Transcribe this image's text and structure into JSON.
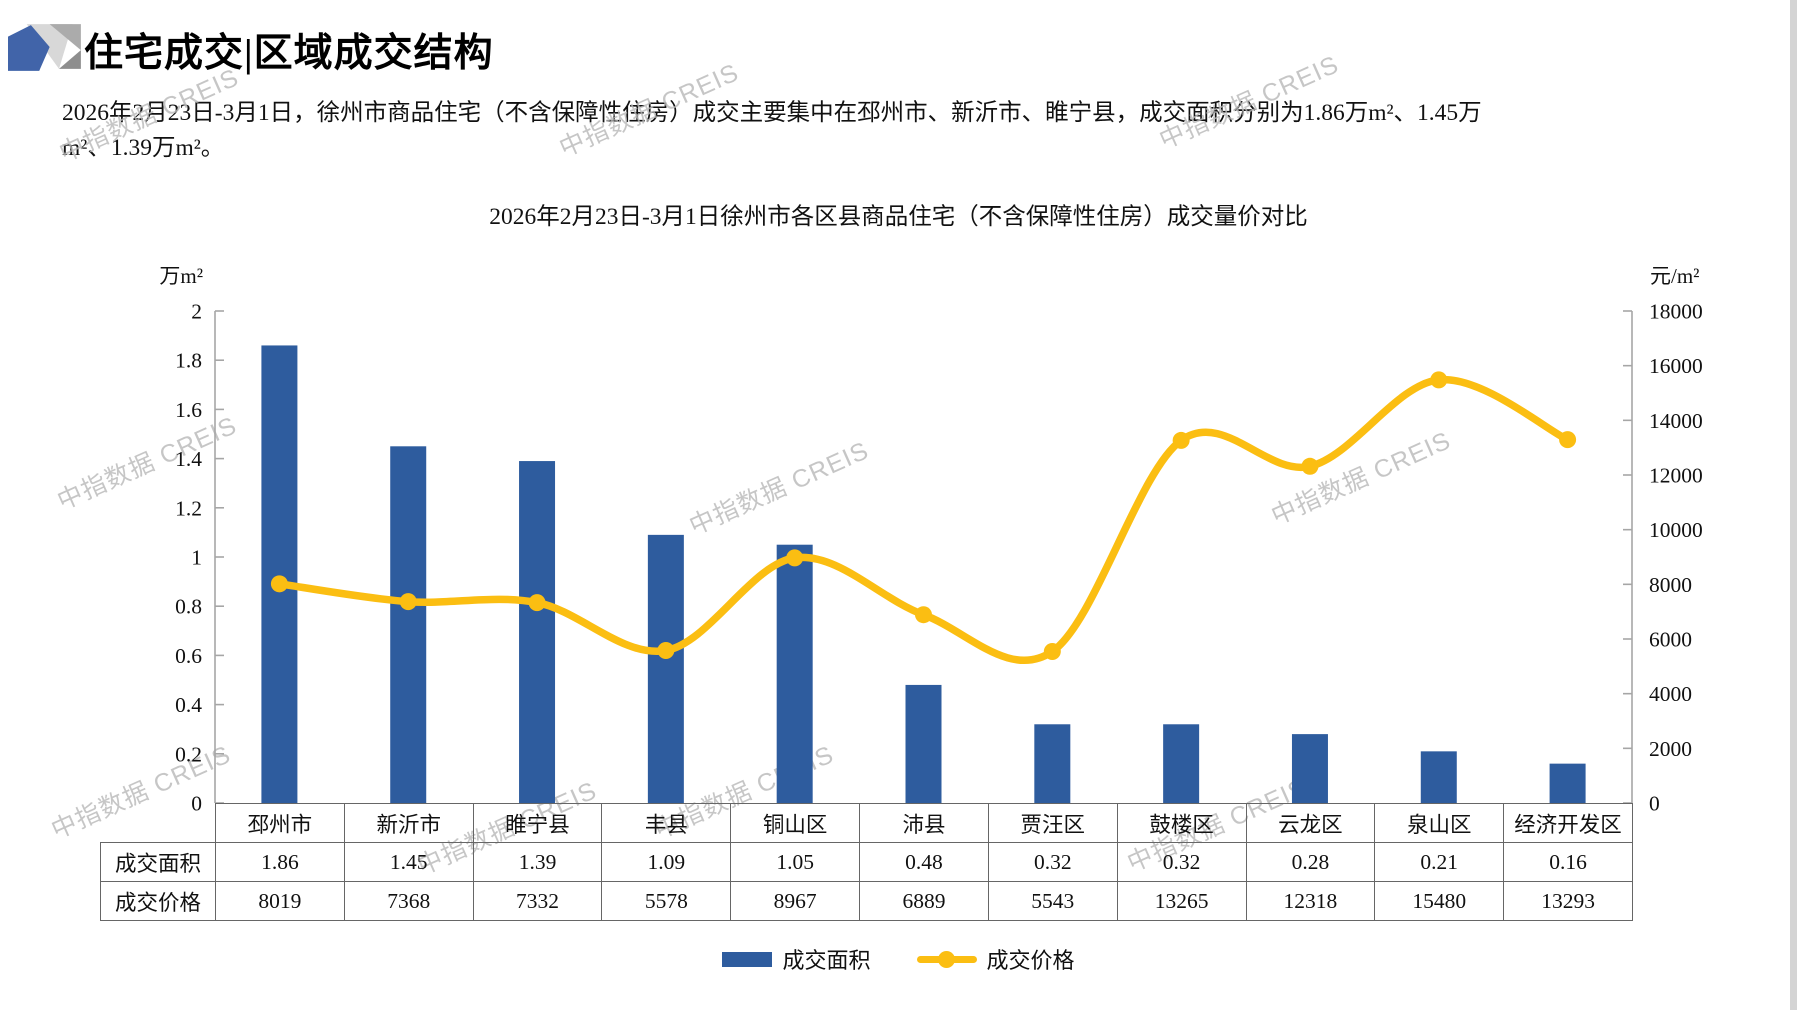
{
  "page": {
    "section_title": "住宅成交|区域成交结构",
    "summary": "2026年2月23日-3月1日，徐州市商品住宅（不含保障性住房）成交主要集中在邳州市、新沂市、睢宁县，成交面积分别为1.86万m²、1.45万m²、1.39万m²。",
    "watermark_text": "中指数据 CREIS",
    "logo_colors": {
      "blue": "#4164A9",
      "light_gray": "#D8D8D8",
      "mid_gray": "#ABABAB",
      "dark_gray": "#8E8E8E"
    }
  },
  "chart_data": {
    "type": "bar",
    "subtype": "combo-bar-line-dual-axis",
    "title": "2026年2月23日-3月1日徐州市各区县商品住宅（不含保障性住房）成交量价对比",
    "categories": [
      "邳州市",
      "新沂市",
      "睢宁县",
      "丰县",
      "铜山区",
      "沛县",
      "贾汪区",
      "鼓楼区",
      "云龙区",
      "泉山区",
      "经济开发区"
    ],
    "series": [
      {
        "name": "成交面积",
        "type": "bar",
        "axis": "left",
        "unit": "万m²",
        "color": "#2E5C9E",
        "values": [
          1.86,
          1.45,
          1.39,
          1.09,
          1.05,
          0.48,
          0.32,
          0.32,
          0.28,
          0.21,
          0.16
        ]
      },
      {
        "name": "成交价格",
        "type": "line",
        "axis": "right",
        "unit": "元/m²",
        "color": "#FBBE12",
        "values": [
          8019,
          7368,
          7332,
          5578,
          8967,
          6889,
          5543,
          13265,
          12318,
          15480,
          13293
        ]
      }
    ],
    "left_axis": {
      "unit": "万m²",
      "min": 0,
      "max": 2,
      "tick_labels": [
        "2",
        "1.8",
        "1.6",
        "1.4",
        "1.2",
        "1",
        "0.8",
        "0.6",
        "0.4",
        "0.2",
        "0"
      ]
    },
    "right_axis": {
      "unit": "元/m²",
      "min": 0,
      "max": 18000,
      "tick_labels": [
        "18000",
        "16000",
        "14000",
        "12000",
        "10000",
        "8000",
        "6000",
        "4000",
        "2000",
        "0"
      ]
    },
    "legend": [
      "成交面积",
      "成交价格"
    ],
    "legend_position": "bottom",
    "grid": false,
    "axis_color": "#A6A6A6"
  },
  "table": {
    "row_labels": [
      "成交面积",
      "成交价格"
    ]
  }
}
